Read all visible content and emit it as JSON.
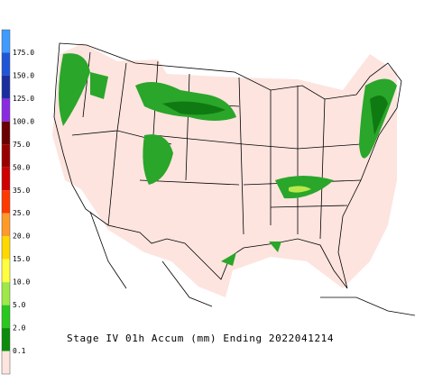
{
  "legend": {
    "labels": [
      "175.0",
      "150.0",
      "125.0",
      "100.0",
      "75.0",
      "50.0",
      "35.0",
      "25.0",
      "20.0",
      "15.0",
      "10.0",
      "5.0",
      "2.0",
      "0.1"
    ],
    "colors": [
      "#3f9bff",
      "#1f56d8",
      "#1a2ea0",
      "#8a2be2",
      "#6a0000",
      "#9a0000",
      "#d00000",
      "#ff3a00",
      "#ff9a28",
      "#ffd800",
      "#ffff40",
      "#9ee84a",
      "#28c81e",
      "#0a8c0a",
      "#fde4df"
    ]
  },
  "caption": "Stage IV 01h Accum (mm) Ending 2022041214"
}
